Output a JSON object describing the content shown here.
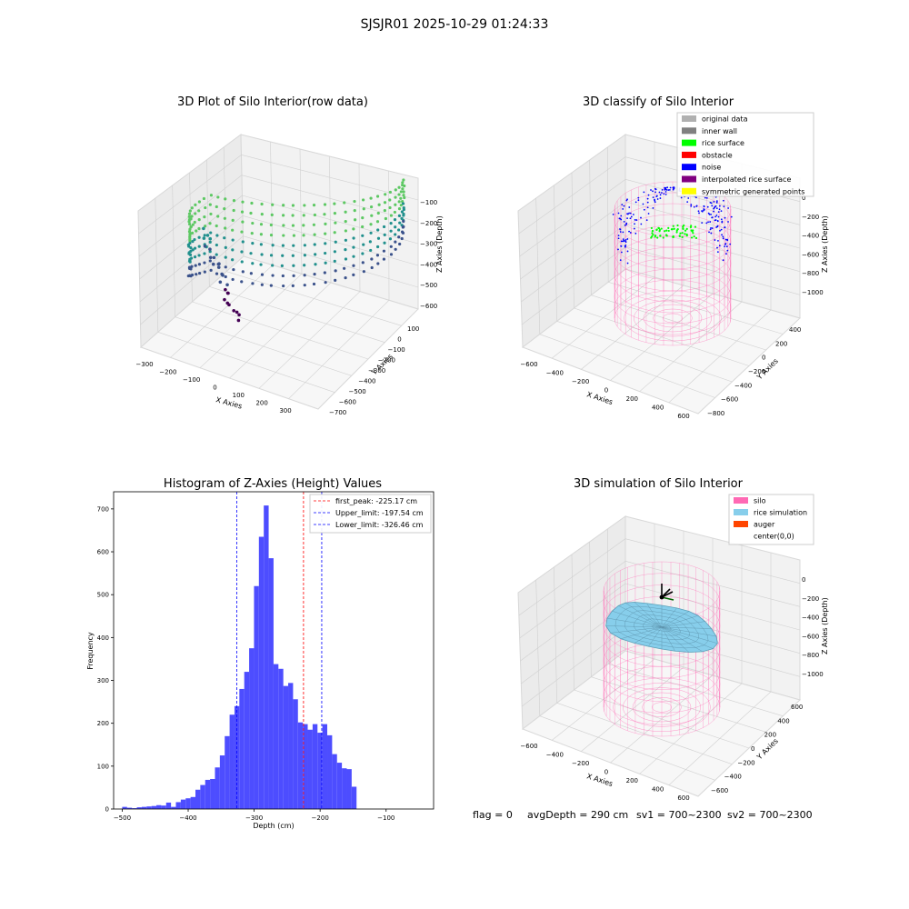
{
  "figure": {
    "suptitle": "SJSJR01 2025-10-29 01:24:33",
    "status": {
      "flag": "flag = 0",
      "avg_depth": "avgDepth = 290 cm",
      "sv1": "sv1 = 700~2300",
      "sv2": "sv2 = 700~2300"
    }
  },
  "chart_data": [
    {
      "type": "scatter",
      "title": "3D Plot of Silo Interior(row data)",
      "xlabel": "X Axies",
      "ylabel": "Y Axies",
      "zlabel": "Z Axies (Depth)",
      "x_ticks": [
        "−300",
        "−200",
        "−100",
        "0",
        "100",
        "200",
        "300"
      ],
      "y_ticks": [
        "100",
        "0",
        "−100",
        "−200",
        "−300",
        "−400",
        "−500",
        "−600",
        "−700"
      ],
      "z_ticks": [
        "−100",
        "−200",
        "−300",
        "−400",
        "−500",
        "−600"
      ],
      "colormap": [
        "#440154",
        "#3b528b",
        "#21908d",
        "#5dc863",
        "#fde725"
      ]
    },
    {
      "type": "scatter",
      "title": "3D classify of Silo Interior",
      "xlabel": "X Axies",
      "ylabel": "Y Axies",
      "zlabel": "Z Axies (Depth)",
      "x_ticks": [
        "−600",
        "−400",
        "−200",
        "0",
        "200",
        "400",
        "600"
      ],
      "y_ticks": [
        "400",
        "200",
        "0",
        "−200",
        "−400",
        "−600",
        "−800"
      ],
      "z_ticks": [
        "0",
        "−200",
        "−400",
        "−600",
        "−800",
        "−1000"
      ],
      "legend": [
        {
          "label": "original data",
          "color": "#b0b0b0"
        },
        {
          "label": "inner wall",
          "color": "#808080"
        },
        {
          "label": "rice surface",
          "color": "#00ff00"
        },
        {
          "label": "obstacle",
          "color": "#ff0000"
        },
        {
          "label": "noise",
          "color": "#0000ff"
        },
        {
          "label": "interpolated rice surface",
          "color": "#800080"
        },
        {
          "label": "symmetric generated points",
          "color": "#ffff00"
        }
      ]
    },
    {
      "type": "bar",
      "title": "Histogram of Z-Axies (Height) Values",
      "xlabel": "Depth (cm)",
      "ylabel": "Frequency",
      "xlim": [
        -513,
        -28
      ],
      "ylim": [
        0,
        740
      ],
      "x_ticks": [
        {
          "v": -500,
          "l": "−500"
        },
        {
          "v": -400,
          "l": "−400"
        },
        {
          "v": -300,
          "l": "−300"
        },
        {
          "v": -200,
          "l": "−200"
        },
        {
          "v": -100,
          "l": "−100"
        }
      ],
      "y_ticks": [
        0,
        100,
        200,
        300,
        400,
        500,
        600,
        700
      ],
      "bar_color": "#4d4dff",
      "bin_start": -500,
      "bin_width": 7.4,
      "values": [
        5,
        3,
        2,
        4,
        5,
        6,
        7,
        9,
        8,
        15,
        5,
        16,
        22,
        25,
        28,
        45,
        56,
        68,
        70,
        97,
        125,
        170,
        220,
        240,
        280,
        320,
        375,
        520,
        635,
        708,
        585,
        338,
        327,
        287,
        294,
        256,
        202,
        198,
        185,
        198,
        178,
        198,
        172,
        128,
        108,
        95,
        93,
        52
      ],
      "lines": [
        {
          "label": "first_peak: -225.17 cm",
          "x": -225.17,
          "color": "#ff0000"
        },
        {
          "label": "Upper_limit: -197.54 cm",
          "x": -197.54,
          "color": "#0000ff"
        },
        {
          "label": "Lower_limit: -326.46 cm",
          "x": -326.46,
          "color": "#0000ff"
        }
      ]
    },
    {
      "type": "surface",
      "title": "3D simulation of Silo Interior",
      "xlabel": "X Axies",
      "ylabel": "Y Axies",
      "zlabel": "Z Axies (Depth)",
      "x_ticks": [
        "−600",
        "−400",
        "−200",
        "0",
        "200",
        "400",
        "600"
      ],
      "y_ticks": [
        "600",
        "400",
        "200",
        "0",
        "−200",
        "−400",
        "−600"
      ],
      "z_ticks": [
        "0",
        "−200",
        "−400",
        "−600",
        "−800",
        "−1000"
      ],
      "legend": [
        {
          "label": "silo",
          "color": "#ff69b4"
        },
        {
          "label": "rice simulation",
          "color": "#87ceeb"
        },
        {
          "label": "auger",
          "color": "#ff4500"
        },
        {
          "label": "center(0,0)",
          "color": ""
        }
      ]
    }
  ]
}
